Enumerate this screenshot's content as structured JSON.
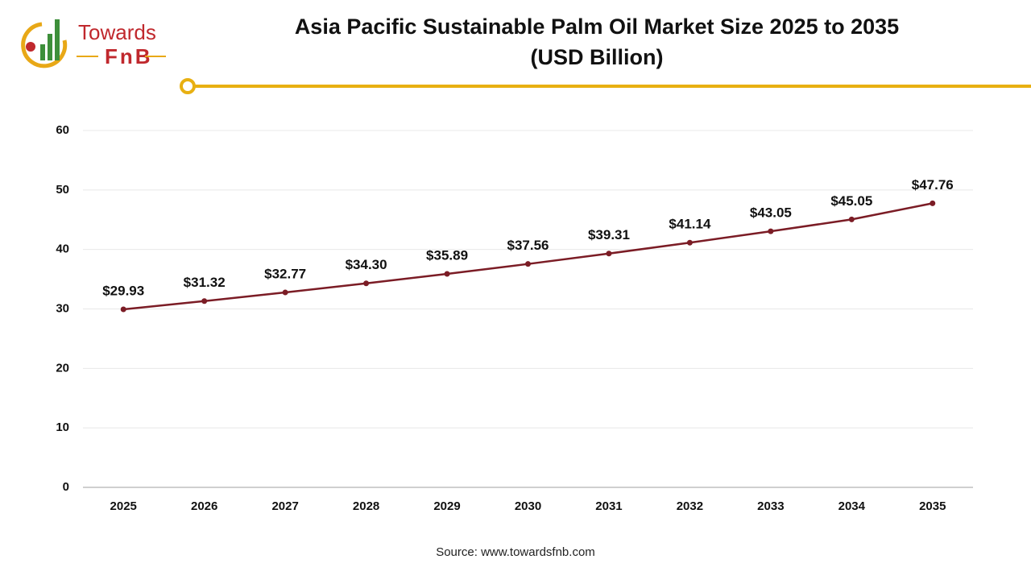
{
  "logo": {
    "line1": "Towards",
    "line2": "FnB"
  },
  "chart_data": {
    "type": "line",
    "title": [
      "Asia Pacific Sustainable Palm Oil Market Size 2025 to 2035",
      "(USD Billion)"
    ],
    "categories": [
      "2025",
      "2026",
      "2027",
      "2028",
      "2029",
      "2030",
      "2031",
      "2032",
      "2033",
      "2034",
      "2035"
    ],
    "series": [
      {
        "color": "#7b1c25",
        "values": [
          29.93,
          31.32,
          32.77,
          34.3,
          35.89,
          37.56,
          39.31,
          41.14,
          43.05,
          45.05,
          47.76
        ],
        "value_labels": [
          "$29.93",
          "$31.32",
          "$32.77",
          "$34.30",
          "$35.89",
          "$37.56",
          "$39.31",
          "$41.14",
          "$43.05",
          "$45.05",
          "$47.76"
        ]
      }
    ],
    "ylim": [
      0,
      60
    ],
    "yticks": [
      0,
      10,
      20,
      30,
      40,
      50,
      60
    ],
    "grid": true,
    "source": "Source: www.towardsfnb.com"
  }
}
